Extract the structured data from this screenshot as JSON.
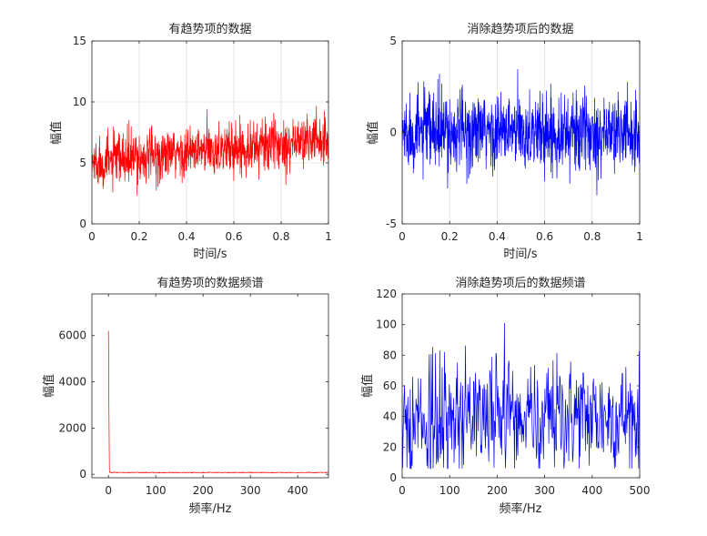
{
  "chart_data": [
    {
      "type": "line",
      "title": "有趋势项的数据",
      "xlabel": "时间/s",
      "ylabel": "幅值",
      "xlim": [
        0,
        1
      ],
      "ylim": [
        0,
        15
      ],
      "xticks": [
        0,
        0.2,
        0.4,
        0.6,
        0.8,
        1
      ],
      "xtick_labels": [
        "0",
        "0.2",
        "0.4",
        "0.6",
        "0.8",
        "1"
      ],
      "yticks": [
        0,
        5,
        10,
        15
      ],
      "ytick_labels": [
        "0",
        "5",
        "10",
        "15"
      ],
      "grid": true,
      "color": "#ff0000",
      "series_shape": "noise about a linear trend",
      "n_points": 1000,
      "trend_start": 5,
      "trend_end": 7,
      "noise_amplitude": 2.5
    },
    {
      "type": "line",
      "title": "消除趋势项后的数据",
      "xlabel": "时间/s",
      "ylabel": "幅值",
      "xlim": [
        0,
        1
      ],
      "ylim": [
        -5,
        5
      ],
      "xticks": [
        0,
        0.2,
        0.4,
        0.6,
        0.8,
        1
      ],
      "xtick_labels": [
        "0",
        "0.2",
        "0.4",
        "0.6",
        "0.8",
        "1"
      ],
      "yticks": [
        -5,
        0,
        5
      ],
      "ytick_labels": [
        "-5",
        "0",
        "5"
      ],
      "grid": true,
      "color": "#0000ff",
      "series_shape": "zero-mean noise",
      "n_points": 1000,
      "trend_start": 0,
      "trend_end": 0,
      "noise_amplitude": 2.5
    },
    {
      "type": "line",
      "title": "有趋势项的数据频谱",
      "xlabel": "频率/Hz",
      "ylabel": "幅值",
      "xlim": [
        -35,
        465
      ],
      "ylim": [
        -150,
        7800
      ],
      "xticks": [
        0,
        100,
        200,
        300,
        400
      ],
      "xtick_labels": [
        "0",
        "100",
        "200",
        "300",
        "400"
      ],
      "yticks": [
        0,
        2000,
        4000,
        6000
      ],
      "ytick_labels": [
        "0",
        "2000",
        "4000",
        "6000"
      ],
      "grid": false,
      "color": "#ff0000",
      "peak_x": 0,
      "peak_value": 6200,
      "baseline_value": 75,
      "x_end": 465,
      "n_points": 500
    },
    {
      "type": "line",
      "title": "消除趋势项后的数据频谱",
      "xlabel": "频率/Hz",
      "ylabel": "幅值",
      "xlim": [
        0,
        500
      ],
      "ylim": [
        0,
        120
      ],
      "xticks": [
        0,
        100,
        200,
        300,
        400,
        500
      ],
      "xtick_labels": [
        "0",
        "100",
        "200",
        "300",
        "400",
        "500"
      ],
      "yticks": [
        0,
        20,
        40,
        60,
        80,
        100,
        120
      ],
      "ytick_labels": [
        "0",
        "20",
        "40",
        "60",
        "80",
        "100",
        "120"
      ],
      "grid": false,
      "color": "#0000ff",
      "mean_value": 40,
      "max_value": 101,
      "n_points": 500
    }
  ]
}
